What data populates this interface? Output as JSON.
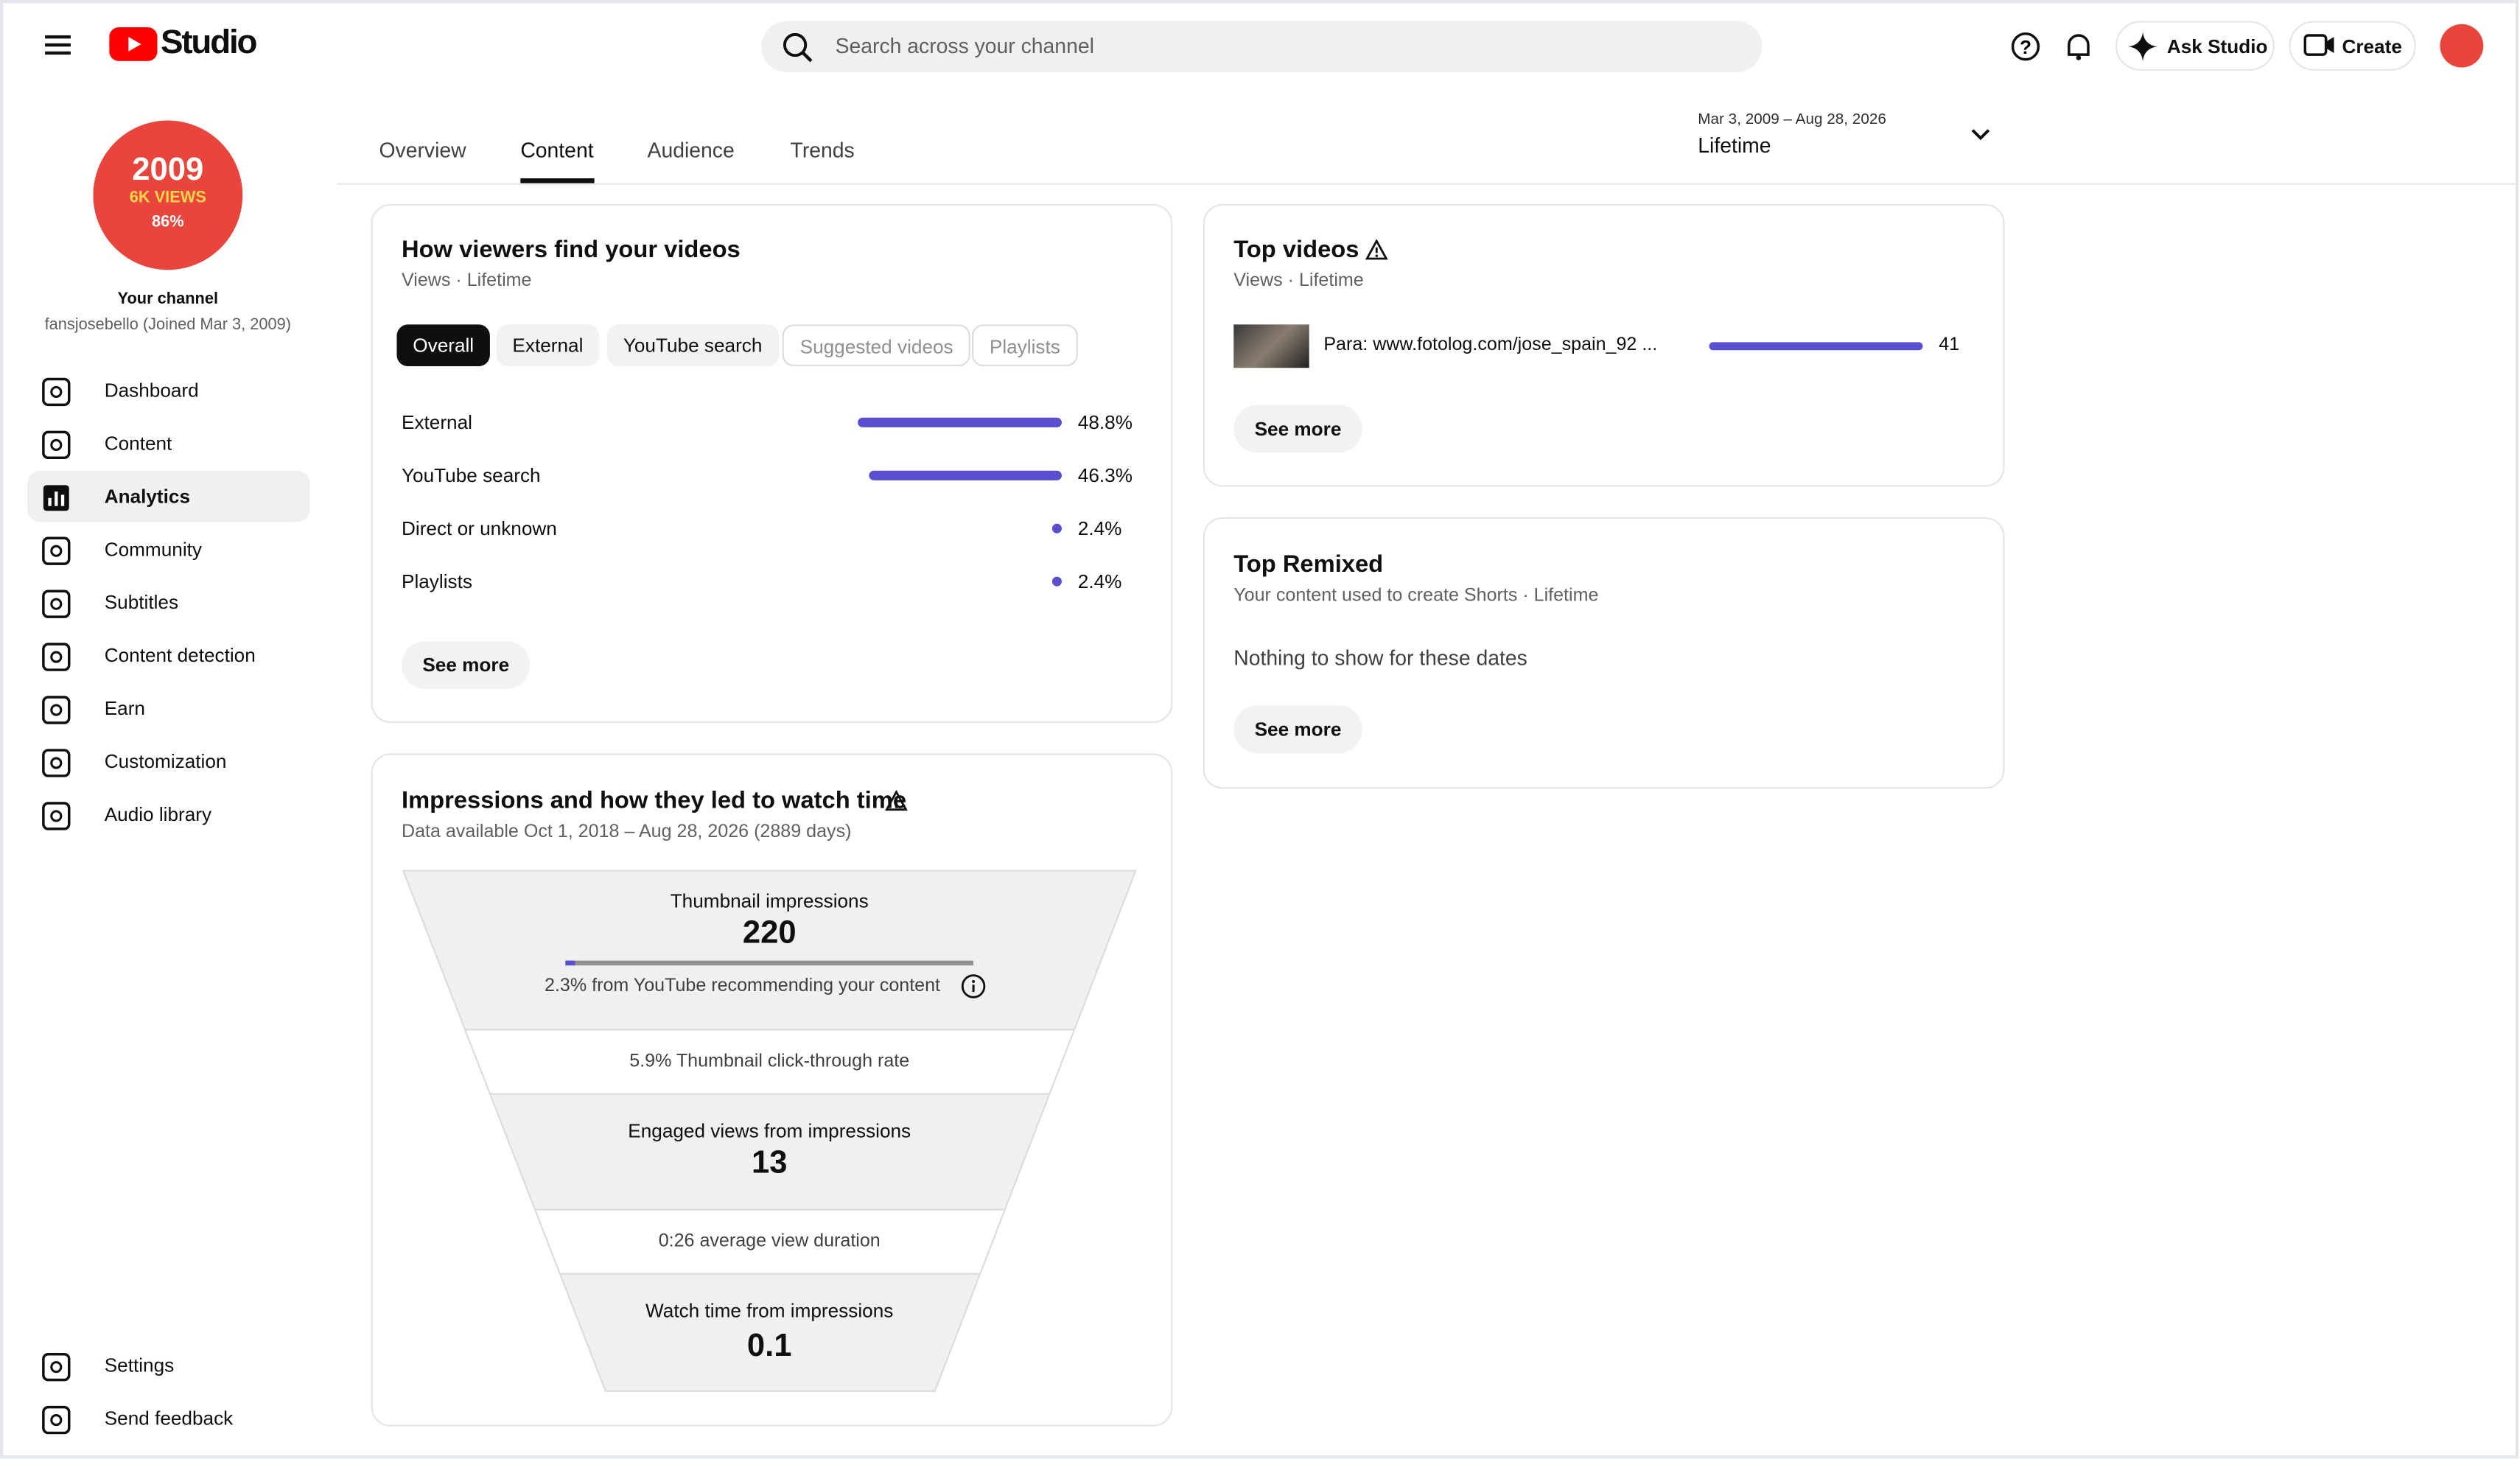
{
  "header": {
    "logo": "Studio",
    "search_placeholder": "Search across your channel",
    "ask": "Ask Studio",
    "create": "Create"
  },
  "channel": {
    "badge_year": "2009",
    "badge_views": "6K VIEWS",
    "badge_pct": "86%",
    "label": "Your channel",
    "handle": "fansjosebello (Joined Mar 3, 2009)"
  },
  "nav": [
    "Dashboard",
    "Content",
    "Analytics",
    "Community",
    "Subtitles",
    "Content detection",
    "Earn",
    "Customization",
    "Audio library"
  ],
  "nav_bottom": [
    "Settings",
    "Send feedback"
  ],
  "tabs": [
    "Overview",
    "Content",
    "Audience",
    "Trends"
  ],
  "date_range": {
    "dates": "Mar 3, 2009 – Aug 28, 2026",
    "period": "Lifetime"
  },
  "traffic": {
    "title": "How viewers find your videos",
    "subtitle": "Views · Lifetime",
    "chips": [
      "Overall",
      "External",
      "YouTube search",
      "Suggested videos",
      "Playlists"
    ],
    "labels": [
      "External",
      "YouTube search",
      "Direct or unknown",
      "Playlists"
    ],
    "values": [
      48.8,
      46.3,
      2.4,
      2.4
    ],
    "value_labels": [
      "48.8%",
      "46.3%",
      "2.4%",
      "2.4%"
    ],
    "button": "See more"
  },
  "impressions": {
    "title": "Impressions and how they led to watch time",
    "subtitle": "Data available Oct 1, 2018 – Aug 28, 2026 (2889 days)",
    "stages": [
      {
        "label": "Thumbnail impressions",
        "value": "220"
      },
      {
        "label": "Engaged views from impressions",
        "value": "13"
      },
      {
        "label": "Watch time from impressions",
        "value": "0.1"
      }
    ],
    "recommend": "2.3% from YouTube recommending your content",
    "ctr": "5.9% Thumbnail click-through rate",
    "duration": "0:26 average view duration"
  },
  "top_videos": {
    "title": "Top videos",
    "subtitle": "Views · Lifetime",
    "videos": [
      "Para: www.fotolog.com/jose_spain_92 ..."
    ],
    "values": [
      41
    ],
    "button": "See more"
  },
  "top_remixed": {
    "title": "Top Remixed",
    "subtitle": "Your content used to create Shorts · Lifetime",
    "empty": "Nothing to show for these dates",
    "button": "See more"
  }
}
